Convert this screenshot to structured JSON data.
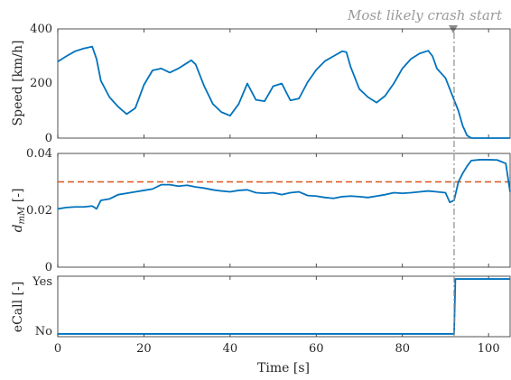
{
  "chart_data": [
    {
      "type": "line",
      "ylabel": "Speed [km/h]",
      "xlim": [
        0,
        105
      ],
      "ylim": [
        0,
        400
      ],
      "yticks": [
        "0",
        "200",
        "400"
      ],
      "grid": false,
      "color": "#0072BD",
      "series": [
        {
          "x": [
            0,
            2,
            4,
            6,
            8,
            9,
            10,
            12,
            14,
            16,
            18,
            20,
            22,
            24,
            26,
            28,
            30,
            31,
            32,
            34,
            36,
            38,
            40,
            42,
            44,
            46,
            48,
            50,
            52,
            54,
            56,
            58,
            60,
            62,
            64,
            66,
            67,
            68,
            70,
            72,
            74,
            76,
            78,
            80,
            82,
            84,
            86,
            87,
            88,
            90,
            91,
            92,
            93,
            94,
            95,
            96,
            98,
            100,
            102,
            105
          ],
          "y": [
            280,
            300,
            318,
            328,
            335,
            290,
            210,
            150,
            115,
            88,
            110,
            195,
            248,
            255,
            240,
            255,
            275,
            285,
            270,
            190,
            125,
            95,
            82,
            125,
            200,
            140,
            135,
            190,
            200,
            138,
            145,
            205,
            250,
            282,
            300,
            318,
            315,
            260,
            180,
            150,
            130,
            155,
            200,
            255,
            290,
            310,
            320,
            300,
            255,
            220,
            180,
            140,
            100,
            45,
            10,
            0,
            0,
            0,
            0,
            0
          ]
        }
      ]
    },
    {
      "type": "line",
      "ylabel": "d_mM [-]",
      "xlim": [
        0,
        105
      ],
      "ylim": [
        0,
        0.04
      ],
      "yticks": [
        "0",
        "0.02",
        "0.04"
      ],
      "grid": false,
      "threshold": 0.03,
      "threshold_color": "#D95319",
      "color": "#0072BD",
      "series": [
        {
          "x": [
            0,
            2,
            4,
            6,
            8,
            9,
            10,
            12,
            14,
            16,
            18,
            20,
            22,
            24,
            26,
            28,
            30,
            32,
            34,
            36,
            38,
            40,
            42,
            44,
            46,
            48,
            50,
            52,
            54,
            56,
            58,
            60,
            62,
            64,
            66,
            68,
            70,
            72,
            74,
            76,
            78,
            80,
            82,
            84,
            86,
            88,
            90,
            91,
            92,
            93,
            94,
            95,
            96,
            98,
            100,
            102,
            104,
            105
          ],
          "y": [
            0.0205,
            0.021,
            0.0212,
            0.0212,
            0.0215,
            0.0205,
            0.0235,
            0.024,
            0.0255,
            0.026,
            0.0265,
            0.027,
            0.0275,
            0.029,
            0.029,
            0.0285,
            0.0288,
            0.0282,
            0.0278,
            0.0272,
            0.0268,
            0.0265,
            0.027,
            0.0272,
            0.0262,
            0.026,
            0.0262,
            0.0255,
            0.0262,
            0.0265,
            0.0252,
            0.025,
            0.0245,
            0.0242,
            0.0248,
            0.025,
            0.0248,
            0.0245,
            0.025,
            0.0255,
            0.0262,
            0.026,
            0.0262,
            0.0265,
            0.0268,
            0.0265,
            0.0262,
            0.0228,
            0.0235,
            0.03,
            0.033,
            0.0355,
            0.0375,
            0.0378,
            0.0378,
            0.0377,
            0.0365,
            0.0265
          ]
        }
      ]
    },
    {
      "type": "line",
      "ylabel": "eCall [-]",
      "xlabel": "Time [s]",
      "xlim": [
        0,
        105
      ],
      "ylim": [
        -0.05,
        1.05
      ],
      "yticks": [
        "No",
        "Yes"
      ],
      "xticks": [
        "0",
        "20",
        "40",
        "60",
        "80",
        "100"
      ],
      "grid": false,
      "color": "#0072BD",
      "series": [
        {
          "x": [
            0,
            92,
            92.3,
            105
          ],
          "y": [
            0,
            0,
            1,
            1
          ]
        }
      ]
    }
  ],
  "annotation": {
    "text": "Most likely crash start",
    "x": 92,
    "color": "#9a9a9a"
  }
}
